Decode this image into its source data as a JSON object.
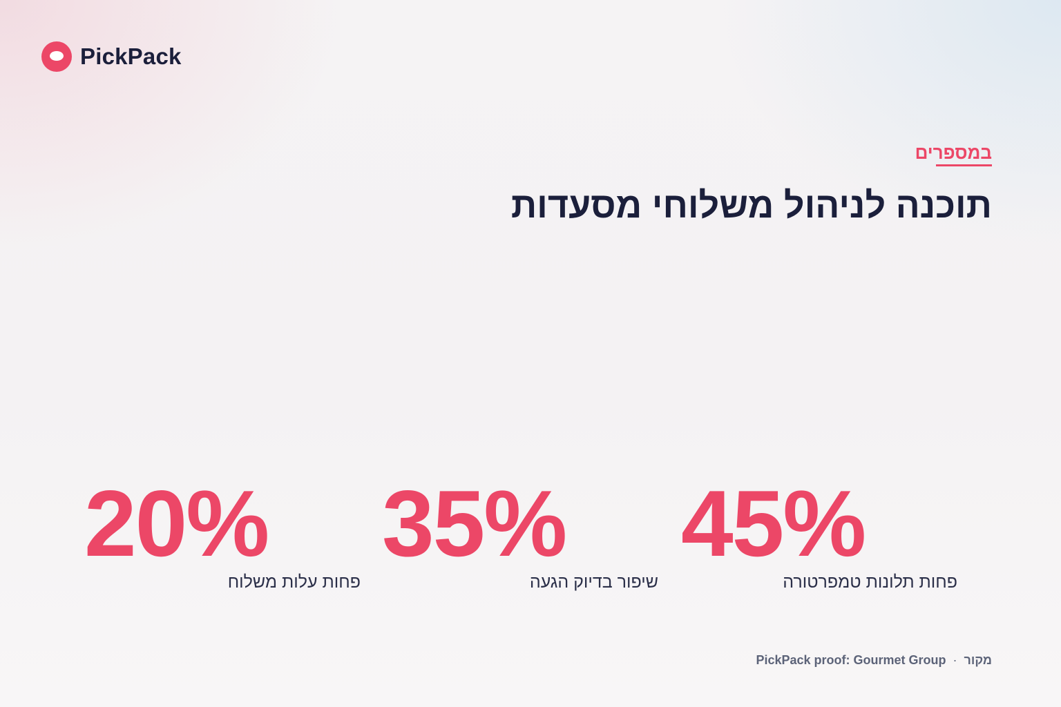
{
  "brand": {
    "name": "PickPack",
    "logo_icon": "pickpack-logo-icon",
    "logo_color": "#ec4767"
  },
  "header": {
    "eyebrow": "במספרים",
    "title": "תוכנה לניהול משלוחי מסעדות"
  },
  "stats": [
    {
      "value": "20%",
      "label": "פחות עלות משלוח"
    },
    {
      "value": "35%",
      "label": "שיפור בדיוק הגעה"
    },
    {
      "value": "45%",
      "label": "פחות תלונות טמפרטורה"
    }
  ],
  "footer": {
    "source_label": "מקור",
    "separator": "·",
    "source_text": "PickPack proof: Gourmet Group"
  },
  "colors": {
    "accent": "#ec4767",
    "heading": "#1b1f3b",
    "body": "#2b2f49",
    "muted": "#5c6378"
  }
}
